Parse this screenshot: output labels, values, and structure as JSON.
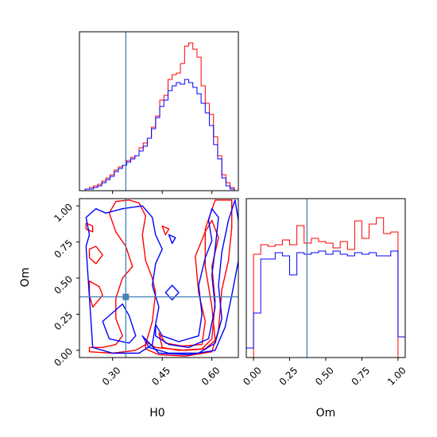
{
  "chart_data": {
    "type": "corner",
    "parameters": [
      "H0",
      "Om"
    ],
    "truth": {
      "H0": 0.34,
      "Om": 0.37
    },
    "colors": {
      "red": "#ff0000",
      "blue": "#0000ff",
      "truth": "#4682b4"
    },
    "h0_range": [
      0.2,
      0.68
    ],
    "om_range": [
      -0.05,
      1.05
    ],
    "panels": [
      {
        "id": "hist-h0",
        "type": "step-histogram",
        "x_parameter": "H0",
        "bin_edges": [
          0.205,
          0.2175,
          0.23,
          0.2425,
          0.255,
          0.2675,
          0.28,
          0.2925,
          0.305,
          0.3175,
          0.33,
          0.3425,
          0.355,
          0.3675,
          0.38,
          0.3925,
          0.405,
          0.4175,
          0.43,
          0.4425,
          0.455,
          0.4675,
          0.48,
          0.4925,
          0.505,
          0.5175,
          0.53,
          0.5425,
          0.555,
          0.5675,
          0.58,
          0.5925,
          0.605,
          0.6175,
          0.63,
          0.6425,
          0.655,
          0.6675,
          0.68
        ],
        "series": [
          {
            "name": "",
            "color": "red",
            "counts": [
              0,
              1,
              2,
              3,
              4,
              6,
              8,
              10,
              13,
              15,
              16,
              19,
              21,
              22,
              27,
              30,
              33,
              40,
              47,
              57,
              60,
              70,
              73,
              74,
              80,
              91,
              93,
              89,
              84,
              66,
              55,
              48,
              34,
              22,
              10,
              5,
              2,
              0
            ]
          },
          {
            "name": "",
            "color": "blue",
            "counts": [
              0,
              1,
              1,
              2,
              3,
              5,
              7,
              9,
              12,
              14,
              16,
              18,
              20,
              22,
              25,
              28,
              33,
              39,
              46,
              53,
              57,
              63,
              66,
              68,
              67,
              70,
              68,
              65,
              61,
              55,
              49,
              41,
              29,
              20,
              8,
              3,
              1,
              0
            ]
          }
        ],
        "ymax": 100,
        "xticks": [
          0.3,
          0.45,
          0.6
        ]
      },
      {
        "id": "contour-h0-om",
        "type": "contour",
        "xlabel": "H0",
        "ylabel": "Om",
        "xticks": [
          0.3,
          0.45,
          0.6
        ],
        "yticks": [
          0.0,
          0.25,
          0.5,
          0.75,
          1.0
        ],
        "xtick_labels": [
          "0.30",
          "0.45",
          "0.60"
        ],
        "ytick_labels": [
          "0.00",
          "0.25",
          "0.50",
          "0.75",
          "1.00"
        ],
        "series": [
          {
            "name": "",
            "color": "red",
            "contours": [
              [
                [
                  0.4,
                  0.06
                ],
                [
                  0.43,
                  0.02
                ],
                [
                  0.52,
                  0.0
                ],
                [
                  0.58,
                  0.01
                ],
                [
                  0.61,
                  0.07
                ],
                [
                  0.6,
                  0.3
                ],
                [
                  0.58,
                  0.58
                ],
                [
                  0.58,
                  0.84
                ],
                [
                  0.61,
                  1.04
                ],
                [
                  0.66,
                  1.04
                ],
                [
                  0.66,
                  0.85
                ],
                [
                  0.65,
                  0.62
                ],
                [
                  0.63,
                  0.42
                ],
                [
                  0.62,
                  0.14
                ],
                [
                  0.6,
                  -0.01
                ],
                [
                  0.52,
                  -0.04
                ],
                [
                  0.44,
                  -0.03
                ],
                [
                  0.4,
                  0.01
                ]
              ],
              [
                [
                  0.44,
                  0.12
                ],
                [
                  0.46,
                  0.05
                ],
                [
                  0.51,
                  0.03
                ],
                [
                  0.57,
                  0.04
                ],
                [
                  0.58,
                  0.2
                ],
                [
                  0.56,
                  0.4
                ],
                [
                  0.55,
                  0.65
                ],
                [
                  0.58,
                  0.82
                ],
                [
                  0.6,
                  0.9
                ],
                [
                  0.62,
                  0.78
                ],
                [
                  0.6,
                  0.58
                ],
                [
                  0.61,
                  0.34
                ],
                [
                  0.6,
                  0.08
                ],
                [
                  0.57,
                  0.01
                ],
                [
                  0.5,
                  0.0
                ],
                [
                  0.45,
                  0.02
                ]
              ],
              [
                [
                  0.23,
                  0.02
                ],
                [
                  0.27,
                  0.02
                ],
                [
                  0.31,
                  0.04
                ],
                [
                  0.33,
                  0.1
                ],
                [
                  0.31,
                  0.22
                ],
                [
                  0.31,
                  0.36
                ],
                [
                  0.33,
                  0.5
                ],
                [
                  0.36,
                  0.58
                ],
                [
                  0.34,
                  0.72
                ],
                [
                  0.31,
                  0.82
                ],
                [
                  0.29,
                  0.95
                ],
                [
                  0.31,
                  1.03
                ],
                [
                  0.35,
                  1.04
                ],
                [
                  0.38,
                  1.02
                ],
                [
                  0.4,
                  0.93
                ],
                [
                  0.39,
                  0.8
                ],
                [
                  0.4,
                  0.62
                ],
                [
                  0.42,
                  0.5
                ],
                [
                  0.43,
                  0.4
                ],
                [
                  0.42,
                  0.2
                ],
                [
                  0.4,
                  0.04
                ],
                [
                  0.37,
                  0.0
                ],
                [
                  0.3,
                  -0.02
                ],
                [
                  0.23,
                  -0.01
                ]
              ],
              [
                [
                  0.23,
                  0.48
                ],
                [
                  0.26,
                  0.44
                ],
                [
                  0.27,
                  0.38
                ],
                [
                  0.24,
                  0.3
                ],
                [
                  0.23,
                  0.38
                ]
              ],
              [
                [
                  0.22,
                  0.88
                ],
                [
                  0.24,
                  0.86
                ],
                [
                  0.24,
                  0.82
                ],
                [
                  0.22,
                  0.84
                ]
              ],
              [
                [
                  0.23,
                  0.7
                ],
                [
                  0.25,
                  0.72
                ],
                [
                  0.27,
                  0.66
                ],
                [
                  0.25,
                  0.6
                ],
                [
                  0.23,
                  0.64
                ]
              ],
              [
                [
                  0.45,
                  0.86
                ],
                [
                  0.47,
                  0.84
                ],
                [
                  0.46,
                  0.8
                ]
              ]
            ]
          },
          {
            "name": "",
            "color": "blue",
            "contours": [
              [
                [
                  0.39,
                  0.1
                ],
                [
                  0.41,
                  0.02
                ],
                [
                  0.47,
                  -0.02
                ],
                [
                  0.56,
                  -0.02
                ],
                [
                  0.61,
                  0.05
                ],
                [
                  0.63,
                  0.22
                ],
                [
                  0.62,
                  0.45
                ],
                [
                  0.63,
                  0.68
                ],
                [
                  0.65,
                  0.9
                ],
                [
                  0.67,
                  1.04
                ],
                [
                  0.68,
                  0.9
                ],
                [
                  0.68,
                  0.62
                ],
                [
                  0.66,
                  0.38
                ],
                [
                  0.64,
                  0.16
                ],
                [
                  0.61,
                  0.0
                ],
                [
                  0.53,
                  -0.03
                ],
                [
                  0.44,
                  -0.02
                ]
              ],
              [
                [
                  0.43,
                  0.18
                ],
                [
                  0.45,
                  0.1
                ],
                [
                  0.5,
                  0.06
                ],
                [
                  0.56,
                  0.1
                ],
                [
                  0.57,
                  0.25
                ],
                [
                  0.56,
                  0.45
                ],
                [
                  0.58,
                  0.64
                ],
                [
                  0.6,
                  0.76
                ],
                [
                  0.59,
                  0.9
                ],
                [
                  0.6,
                  0.98
                ],
                [
                  0.62,
                  0.92
                ],
                [
                  0.61,
                  0.7
                ],
                [
                  0.6,
                  0.52
                ],
                [
                  0.61,
                  0.3
                ],
                [
                  0.59,
                  0.08
                ],
                [
                  0.53,
                  0.02
                ],
                [
                  0.47,
                  0.04
                ],
                [
                  0.43,
                  0.1
                ]
              ],
              [
                [
                  0.27,
                  0.2
                ],
                [
                  0.29,
                  0.08
                ],
                [
                  0.35,
                  0.05
                ],
                [
                  0.37,
                  0.1
                ],
                [
                  0.35,
                  0.24
                ],
                [
                  0.33,
                  0.32
                ],
                [
                  0.31,
                  0.28
                ]
              ],
              [
                [
                  0.24,
                  0.02
                ],
                [
                  0.3,
                  -0.02
                ],
                [
                  0.38,
                  -0.02
                ],
                [
                  0.42,
                  0.04
                ],
                [
                  0.43,
                  0.18
                ],
                [
                  0.44,
                  0.3
                ],
                [
                  0.42,
                  0.45
                ],
                [
                  0.43,
                  0.6
                ],
                [
                  0.45,
                  0.7
                ],
                [
                  0.43,
                  0.8
                ],
                [
                  0.42,
                  0.92
                ],
                [
                  0.39,
                  1.0
                ],
                [
                  0.33,
                  0.98
                ],
                [
                  0.28,
                  0.95
                ],
                [
                  0.25,
                  0.98
                ],
                [
                  0.22,
                  0.92
                ],
                [
                  0.23,
                  0.8
                ],
                [
                  0.22,
                  0.72
                ]
              ],
              [
                [
                  0.46,
                  0.4
                ],
                [
                  0.48,
                  0.45
                ],
                [
                  0.5,
                  0.4
                ],
                [
                  0.48,
                  0.35
                ]
              ],
              [
                [
                  0.47,
                  0.8
                ],
                [
                  0.49,
                  0.78
                ],
                [
                  0.48,
                  0.74
                ]
              ]
            ]
          }
        ]
      },
      {
        "id": "hist-om",
        "type": "step-histogram",
        "xlabel": "Om",
        "xticks": [
          0.0,
          0.25,
          0.5,
          0.75,
          1.0
        ],
        "xtick_labels": [
          "0.00",
          "0.25",
          "0.50",
          "0.75",
          "1.00"
        ],
        "x_range": [
          -0.05,
          1.05
        ],
        "bin_edges": [
          -0.05,
          0.0,
          0.05,
          0.1,
          0.15,
          0.2,
          0.25,
          0.3,
          0.35,
          0.4,
          0.45,
          0.5,
          0.55,
          0.6,
          0.65,
          0.7,
          0.75,
          0.8,
          0.85,
          0.9,
          0.95,
          1.0,
          1.05
        ],
        "series": [
          {
            "name": "",
            "color": "red",
            "counts": [
              0,
              65,
              71,
              70,
              71,
              74,
              71,
              83,
              72,
              75,
              73,
              72,
              69,
              73,
              68,
              86,
              75,
              84,
              88,
              78,
              79,
              0
            ]
          },
          {
            "name": "",
            "color": "blue",
            "counts": [
              6,
              28,
              62,
              62,
              66,
              64,
              52,
              66,
              65,
              66,
              67,
              65,
              67,
              65,
              64,
              66,
              65,
              66,
              64,
              64,
              67,
              13
            ]
          }
        ],
        "ymax": 100
      }
    ]
  }
}
